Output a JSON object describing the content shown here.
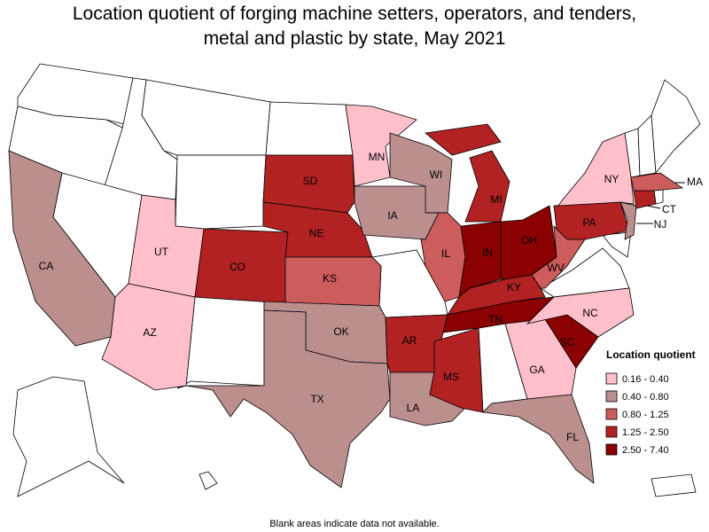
{
  "title": [
    "Location quotient of forging machine setters, operators, and tenders,",
    "metal and plastic by state, May 2021"
  ],
  "note": "Blank areas indicate data not available.",
  "legend": {
    "title": "Location quotient",
    "items": [
      {
        "label": "0.16 - 0.40",
        "color": "#ffc0cb"
      },
      {
        "label": "0.40 - 0.80",
        "color": "#bc8f8f"
      },
      {
        "label": "0.80 - 1.25",
        "color": "#cd5c5c"
      },
      {
        "label": "1.25 - 2.50",
        "color": "#b22222"
      },
      {
        "label": "2.50 - 7.40",
        "color": "#8b0000"
      }
    ]
  },
  "states": [
    {
      "abbr": "CA",
      "color": "#bc8f8f"
    },
    {
      "abbr": "UT",
      "color": "#ffc0cb"
    },
    {
      "abbr": "AZ",
      "color": "#ffc0cb"
    },
    {
      "abbr": "CO",
      "color": "#b22222"
    },
    {
      "abbr": "SD",
      "color": "#b22222"
    },
    {
      "abbr": "NE",
      "color": "#b22222"
    },
    {
      "abbr": "KS",
      "color": "#cd5c5c"
    },
    {
      "abbr": "OK",
      "color": "#bc8f8f"
    },
    {
      "abbr": "TX",
      "color": "#bc8f8f"
    },
    {
      "abbr": "MN",
      "color": "#ffc0cb"
    },
    {
      "abbr": "IA",
      "color": "#bc8f8f"
    },
    {
      "abbr": "WI",
      "color": "#bc8f8f"
    },
    {
      "abbr": "IL",
      "color": "#cd5c5c"
    },
    {
      "abbr": "MI",
      "color": "#b22222"
    },
    {
      "abbr": "IN",
      "color": "#8b0000"
    },
    {
      "abbr": "OH",
      "color": "#8b0000"
    },
    {
      "abbr": "KY",
      "color": "#b22222"
    },
    {
      "abbr": "TN",
      "color": "#8b0000"
    },
    {
      "abbr": "AR",
      "color": "#b22222"
    },
    {
      "abbr": "LA",
      "color": "#bc8f8f"
    },
    {
      "abbr": "MS",
      "color": "#b22222"
    },
    {
      "abbr": "GA",
      "color": "#ffc0cb"
    },
    {
      "abbr": "FL",
      "color": "#bc8f8f"
    },
    {
      "abbr": "SC",
      "color": "#8b0000"
    },
    {
      "abbr": "NC",
      "color": "#ffc0cb"
    },
    {
      "abbr": "WV",
      "color": "#cd5c5c"
    },
    {
      "abbr": "PA",
      "color": "#b22222"
    },
    {
      "abbr": "NY",
      "color": "#ffc0cb"
    },
    {
      "abbr": "NJ",
      "color": "#bc8f8f"
    },
    {
      "abbr": "CT",
      "color": "#b22222"
    },
    {
      "abbr": "MA",
      "color": "#cd5c5c"
    }
  ]
}
